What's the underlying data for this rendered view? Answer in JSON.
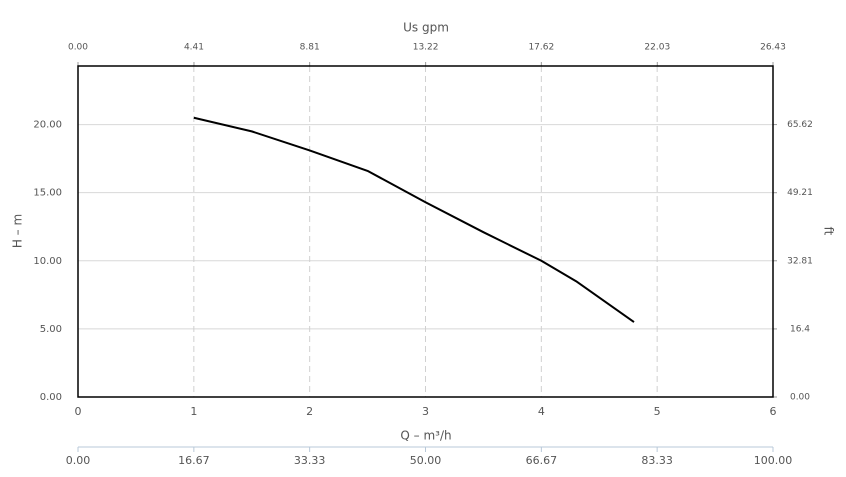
{
  "chart_data": {
    "type": "line",
    "xlabel": "Q – m³/h",
    "ylabel": "H – m",
    "x2label": "Us gpm",
    "y2label": "ft",
    "x": [
      1,
      1.5,
      2,
      2.5,
      3,
      3.5,
      4,
      4.3,
      4.8
    ],
    "values": [
      20.5,
      19.5,
      18.1,
      16.6,
      14.3,
      12.1,
      10.0,
      8.5,
      5.5
    ],
    "color": "#000000",
    "xlim": [
      0,
      6
    ],
    "xticks": [
      0,
      1,
      2,
      3,
      4,
      5,
      6
    ],
    "ylim": [
      0,
      24.3
    ],
    "yticks": [
      {
        "value": 0,
        "label": "0.00"
      },
      {
        "value": 5,
        "label": "5.00"
      },
      {
        "value": 10,
        "label": "10.00"
      },
      {
        "value": 15,
        "label": "15.00"
      },
      {
        "value": 20,
        "label": "20.00"
      }
    ],
    "x2lim": [
      0,
      26.43
    ],
    "x2ticks": [
      {
        "value": 0,
        "label": "0.00"
      },
      4.41,
      8.81,
      13.22,
      17.62,
      22.03,
      26.43
    ],
    "y2lim": [
      0,
      79.73
    ],
    "y2ticks": [
      {
        "value": 0,
        "label": "0.00"
      },
      16.4,
      32.81,
      49.21,
      65.62
    ],
    "x3lim": [
      0,
      100
    ],
    "x3ticks": [
      {
        "value": 0,
        "label": "0.00"
      },
      16.67,
      33.33,
      {
        "value": 50,
        "label": "50.00"
      },
      66.67,
      83.33,
      {
        "value": 100,
        "label": "100.00"
      }
    ],
    "grid": true
  }
}
